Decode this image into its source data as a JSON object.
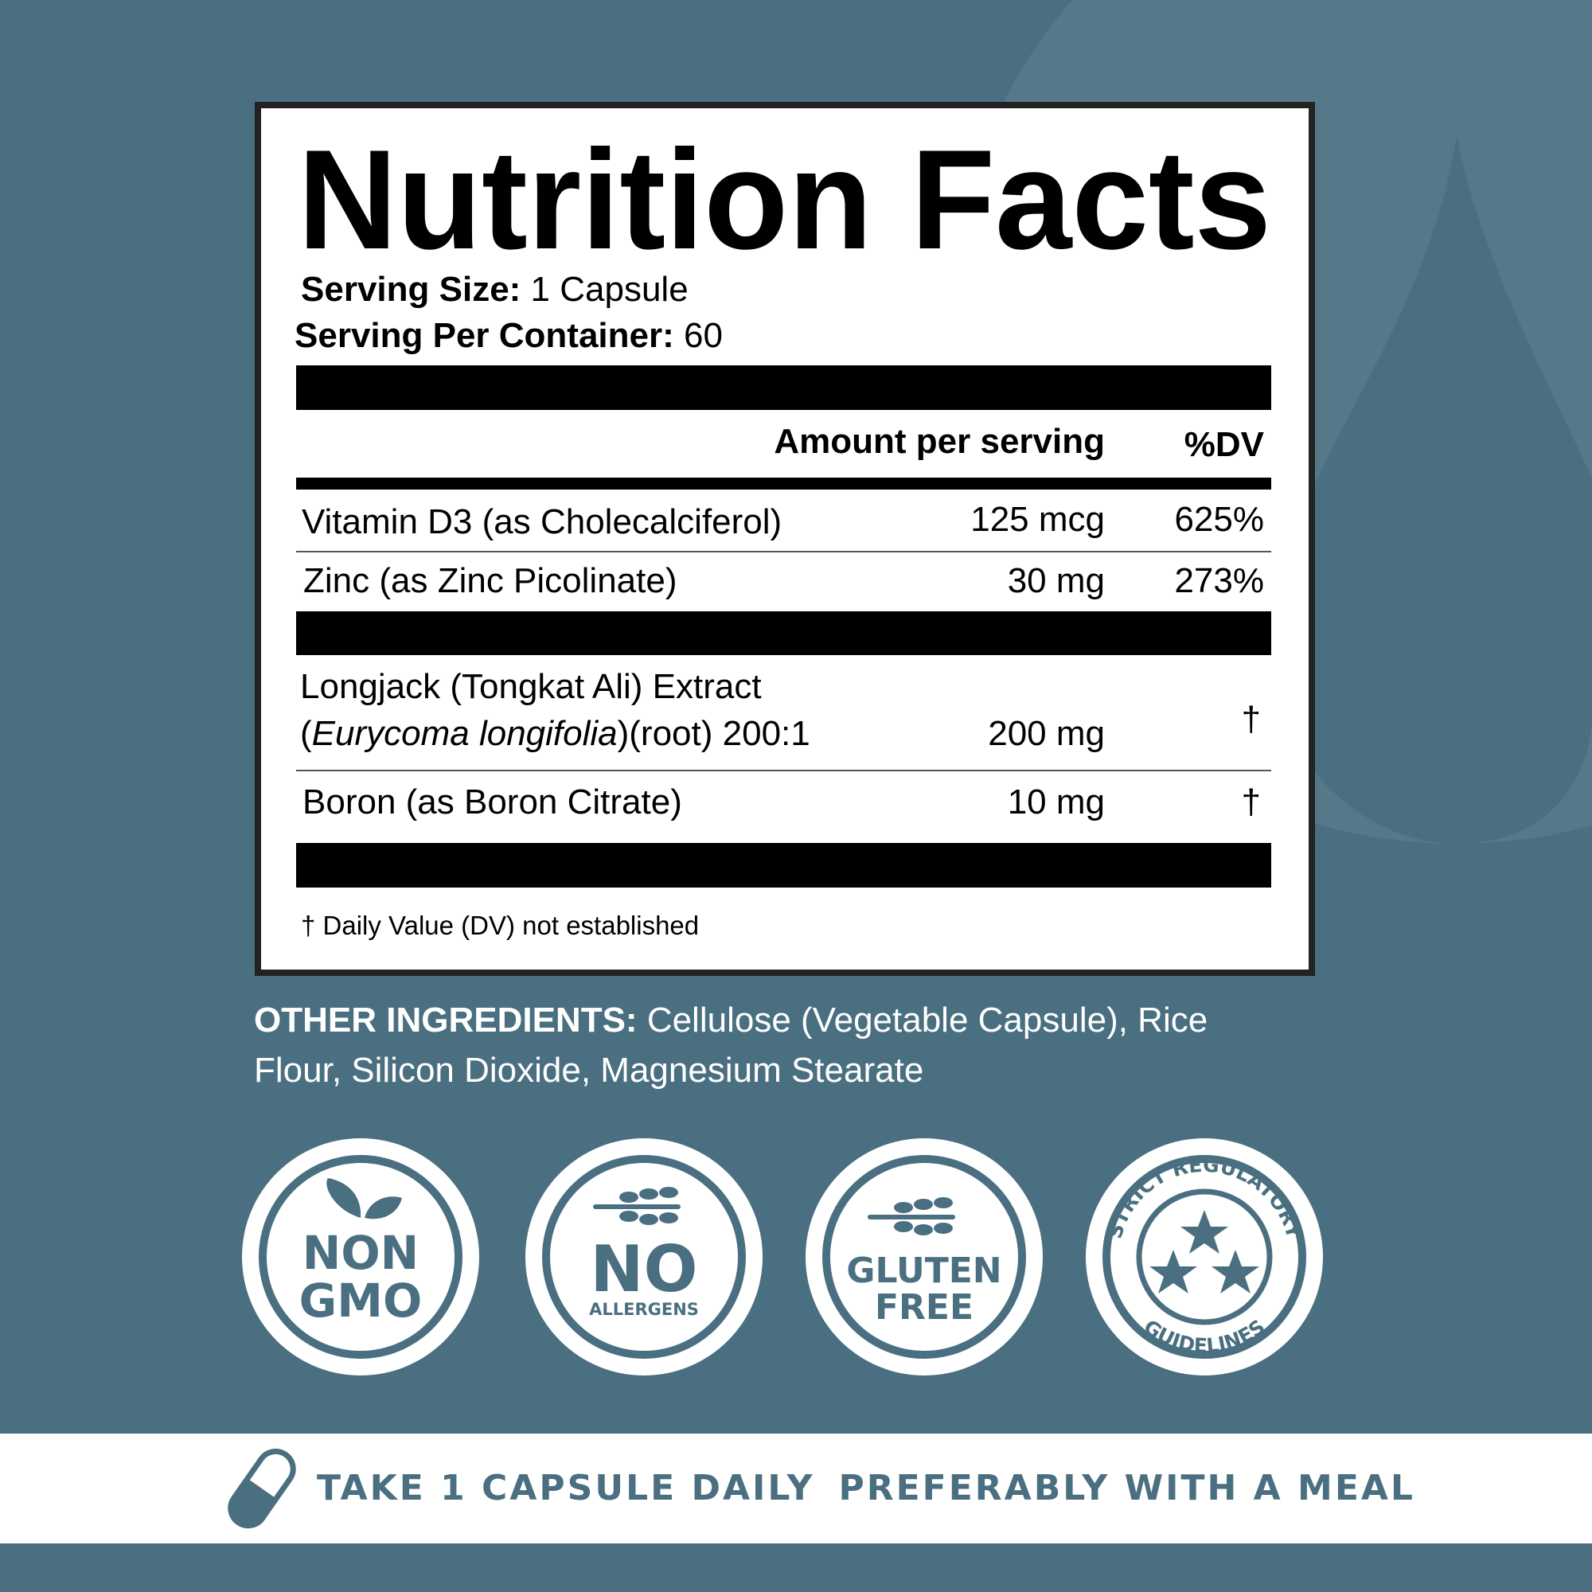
{
  "label": {
    "title": "Nutrition Facts",
    "serving_size": {
      "label": "Serving Size:",
      "value": "1 Capsule"
    },
    "servings_per_container": {
      "label": "Serving Per Container:",
      "value": "60"
    },
    "header": {
      "amount": "Amount per serving",
      "dv": "%DV"
    },
    "vitamins": [
      {
        "name": "Vitamin D3 (as Cholecalciferol)",
        "amount": "125 mcg",
        "dv": "625%"
      },
      {
        "name": "Zinc (as Zinc Picolinate)",
        "amount": "30 mg",
        "dv": "273%"
      }
    ],
    "extracts": [
      {
        "name": [
          "Longjack (Tongkat Ali) Extract",
          "(",
          "Eurycoma longifolia",
          ")(root) 200:1"
        ],
        "amount": "200 mg",
        "dv": "†"
      },
      {
        "name": [
          "Boron (as Boron Citrate)"
        ],
        "amount": "10 mg",
        "dv": "†"
      }
    ],
    "footnote": "† Daily Value (DV) not established"
  },
  "other_ingredients": {
    "label": "OTHER INGREDIENTS:",
    "line1": "Cellulose (Vegetable Capsule), Rice",
    "line2": "Flour, Silicon Dioxide, Magnesium Stearate"
  },
  "badges": [
    {
      "lines": [
        "NON",
        "GMO"
      ]
    },
    {
      "lines": [
        "NO",
        "ALLERGENS"
      ]
    },
    {
      "lines": [
        "GLUTEN",
        "FREE"
      ]
    },
    {
      "lines": [
        "STRICT REGULATORY",
        "GUIDELINES"
      ]
    }
  ],
  "directions": [
    "TAKE 1 CAPSULE DAILY",
    "PREFERABLY WITH A MEAL"
  ]
}
